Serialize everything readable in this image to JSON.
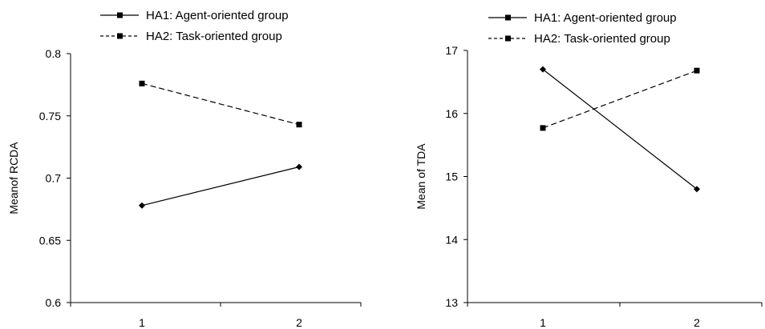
{
  "chart_data": [
    {
      "type": "line",
      "categories": [
        "1",
        "2"
      ],
      "ylabel": "Meanof RCDA",
      "ylim": [
        0.6,
        0.8
      ],
      "yticks": [
        "0.6",
        "0.65",
        "0.7",
        "0.75",
        "0.8"
      ],
      "grid": false,
      "legend_position": "top-left",
      "series": [
        {
          "name": "HA1: Agent-oriented group",
          "values": [
            0.678,
            0.709
          ],
          "line_style": "solid",
          "marker": "diamond"
        },
        {
          "name": "HA2: Task-oriented group",
          "values": [
            0.776,
            0.743
          ],
          "line_style": "dashed",
          "marker": "square"
        }
      ]
    },
    {
      "type": "line",
      "categories": [
        "1",
        "2"
      ],
      "ylabel": "Mean of TDA",
      "ylim": [
        13,
        17
      ],
      "yticks": [
        "13",
        "14",
        "15",
        "16",
        "17"
      ],
      "grid": false,
      "legend_position": "top-left",
      "series": [
        {
          "name": "HA1: Agent-oriented group",
          "values": [
            16.7,
            14.8
          ],
          "line_style": "solid",
          "marker": "diamond"
        },
        {
          "name": "HA2: Task-oriented group",
          "values": [
            15.77,
            16.68
          ],
          "line_style": "dashed",
          "marker": "square"
        }
      ]
    }
  ],
  "colors": {
    "line": "#000000",
    "background": "#ffffff"
  }
}
